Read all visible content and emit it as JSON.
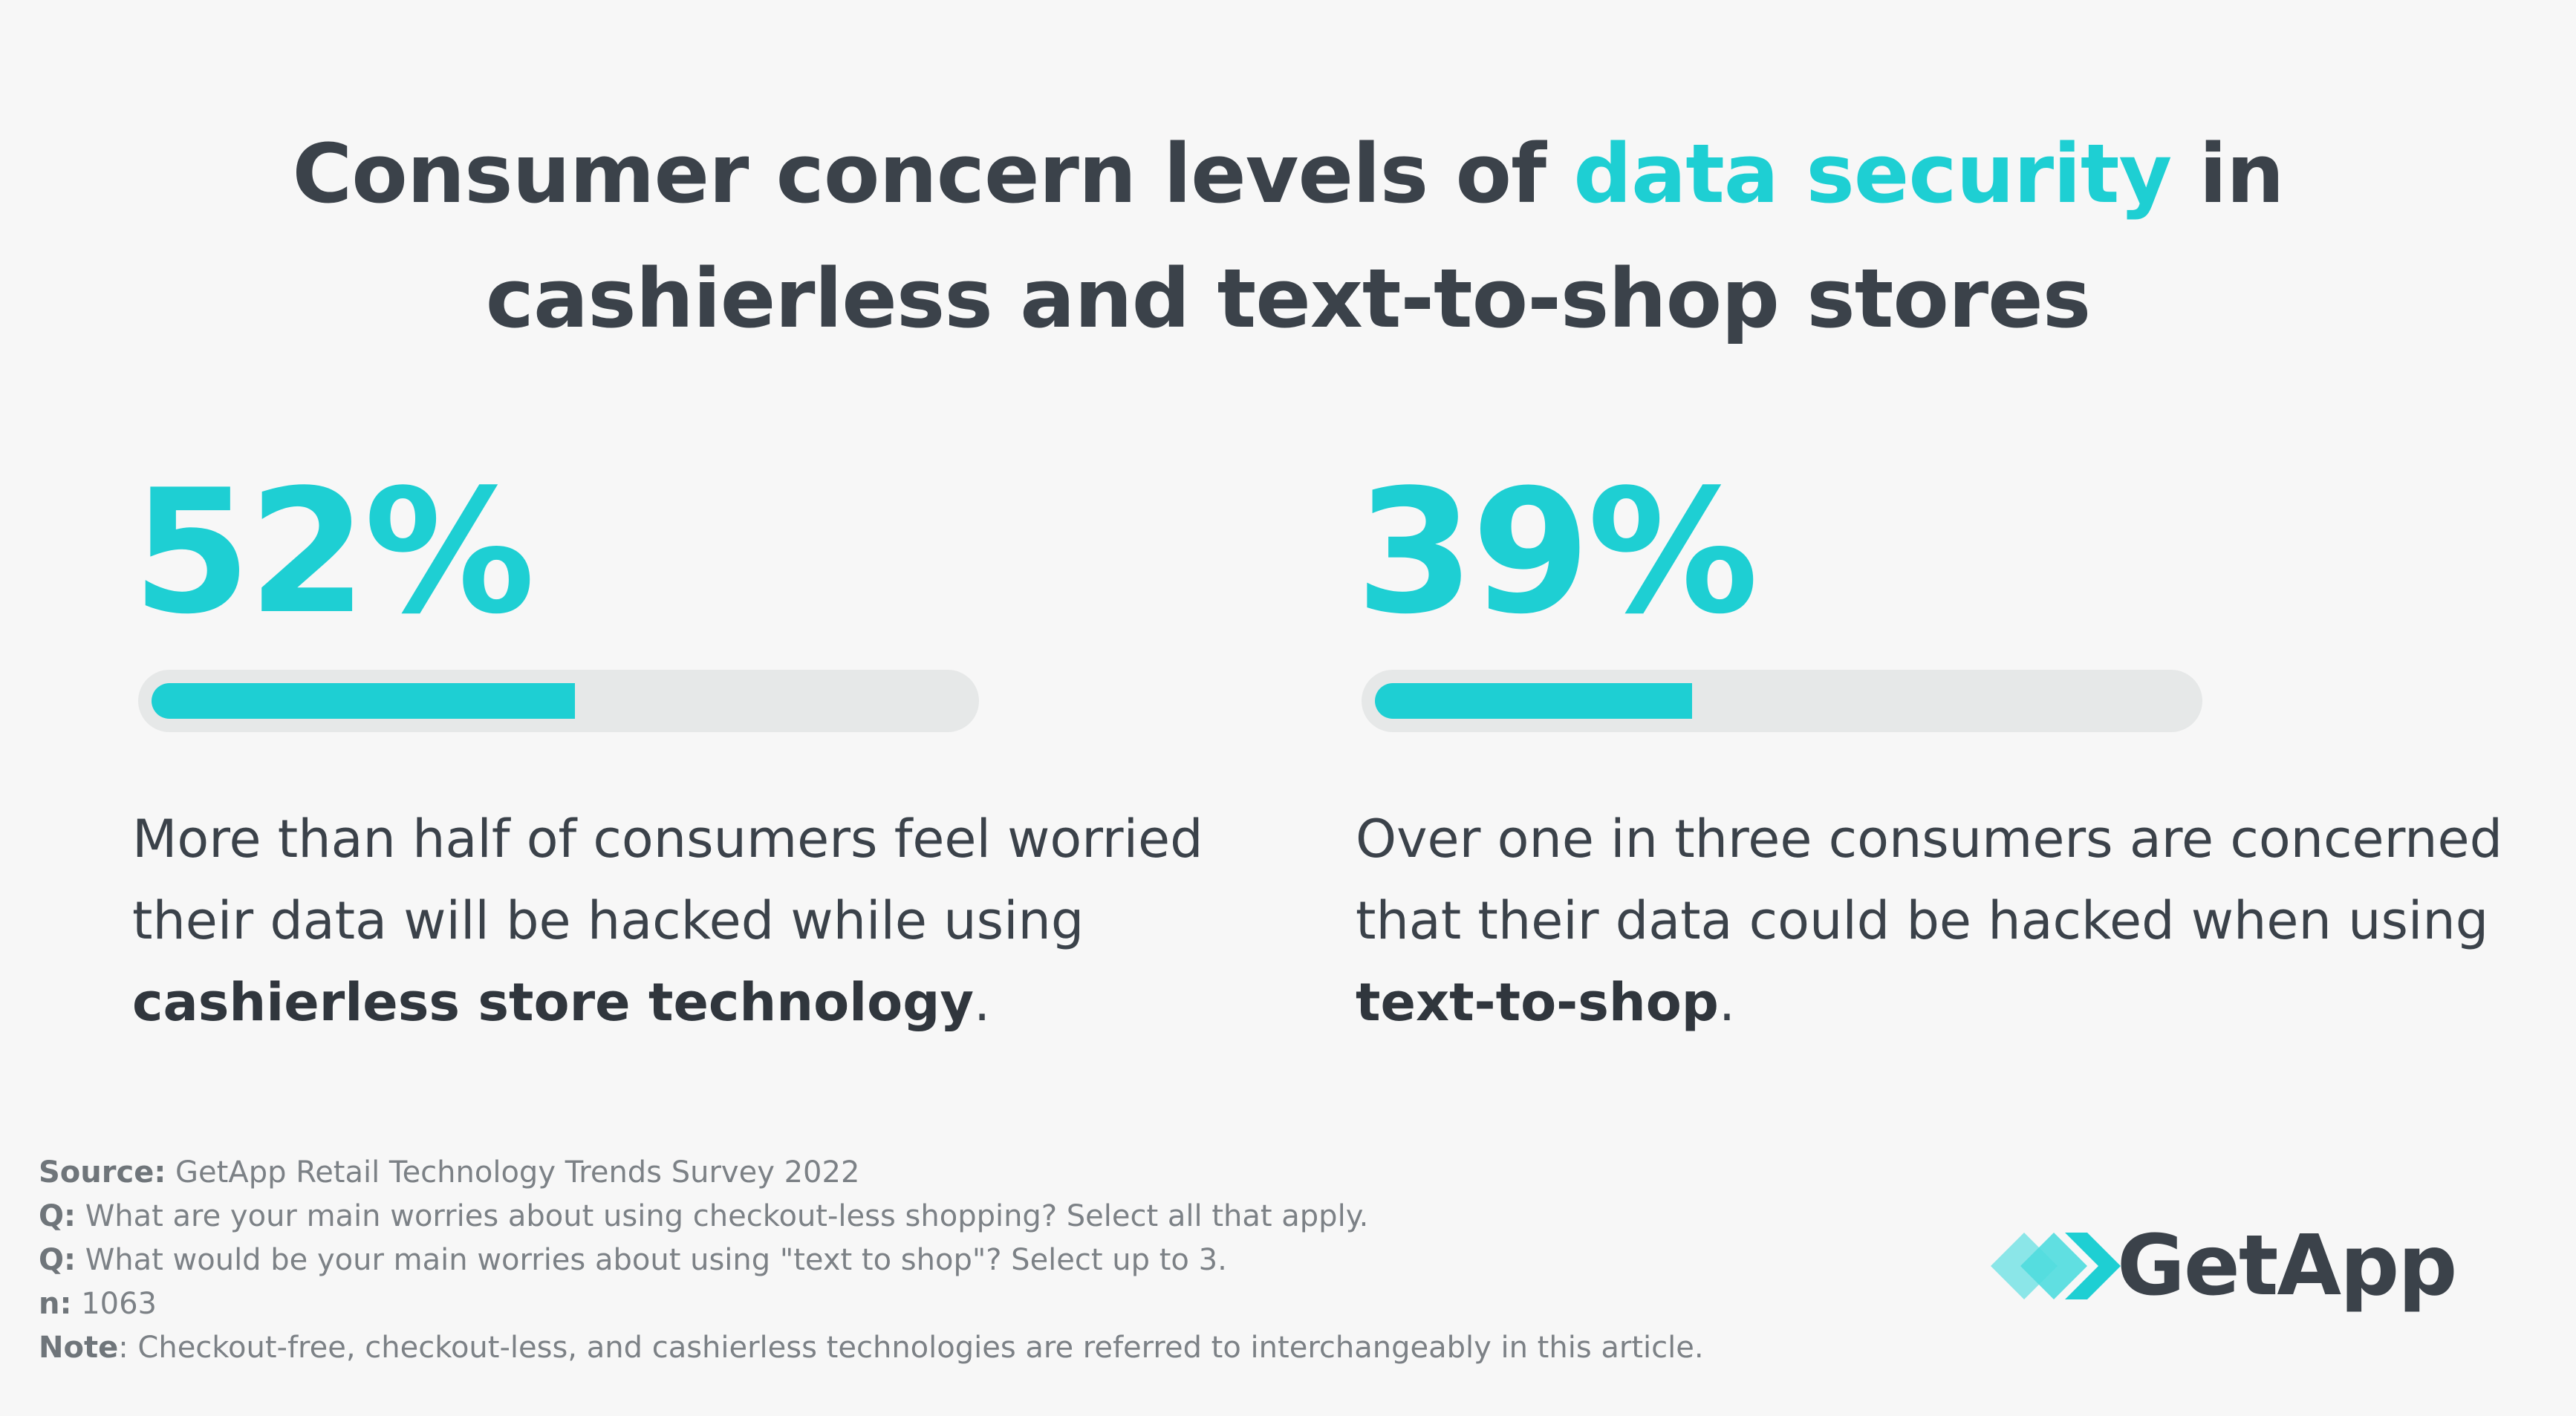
{
  "title": {
    "part1": "Consumer concern levels of ",
    "highlight": "data security",
    "part2": " in",
    "line2": "cashierless and text-to-shop stores"
  },
  "chart_data": {
    "type": "bar",
    "categories": [
      "cashierless store technology",
      "text-to-shop"
    ],
    "values": [
      52,
      39
    ],
    "ylim": [
      0,
      100
    ]
  },
  "stats": [
    {
      "value_label": "52%",
      "text_before": "More than half of consumers feel worried their data will be hacked while using ",
      "text_bold": "cashierless store technology",
      "text_after": "."
    },
    {
      "value_label": "39%",
      "text_before": "Over one in three consumers are concerned that their data could be hacked when using ",
      "text_bold": "text-to-shop",
      "text_after": "."
    }
  ],
  "footnotes": {
    "source_key": "Source:",
    "source_val": " GetApp Retail Technology Trends Survey 2022",
    "q1_key": "Q:",
    "q1_val": " What are your main worries about using checkout-less shopping? Select all that apply.",
    "q2_key": "Q:",
    "q2_val": " What would be your main worries about using \"text to shop\"? Select up to 3.",
    "n_key": "n:",
    "n_val": " 1063",
    "note_key": "Note",
    "note_val": ": Checkout-free, checkout-less, and cashierless technologies are referred to interchangeably in this article."
  },
  "logo": {
    "text": "GetApp",
    "colors": {
      "front": "#1ecfd3",
      "back": "#8be6e8"
    }
  },
  "colors": {
    "accent": "#1ecfd3",
    "text": "#3b424a",
    "track": "#e6e8e8",
    "background": "#f7f7f7"
  }
}
